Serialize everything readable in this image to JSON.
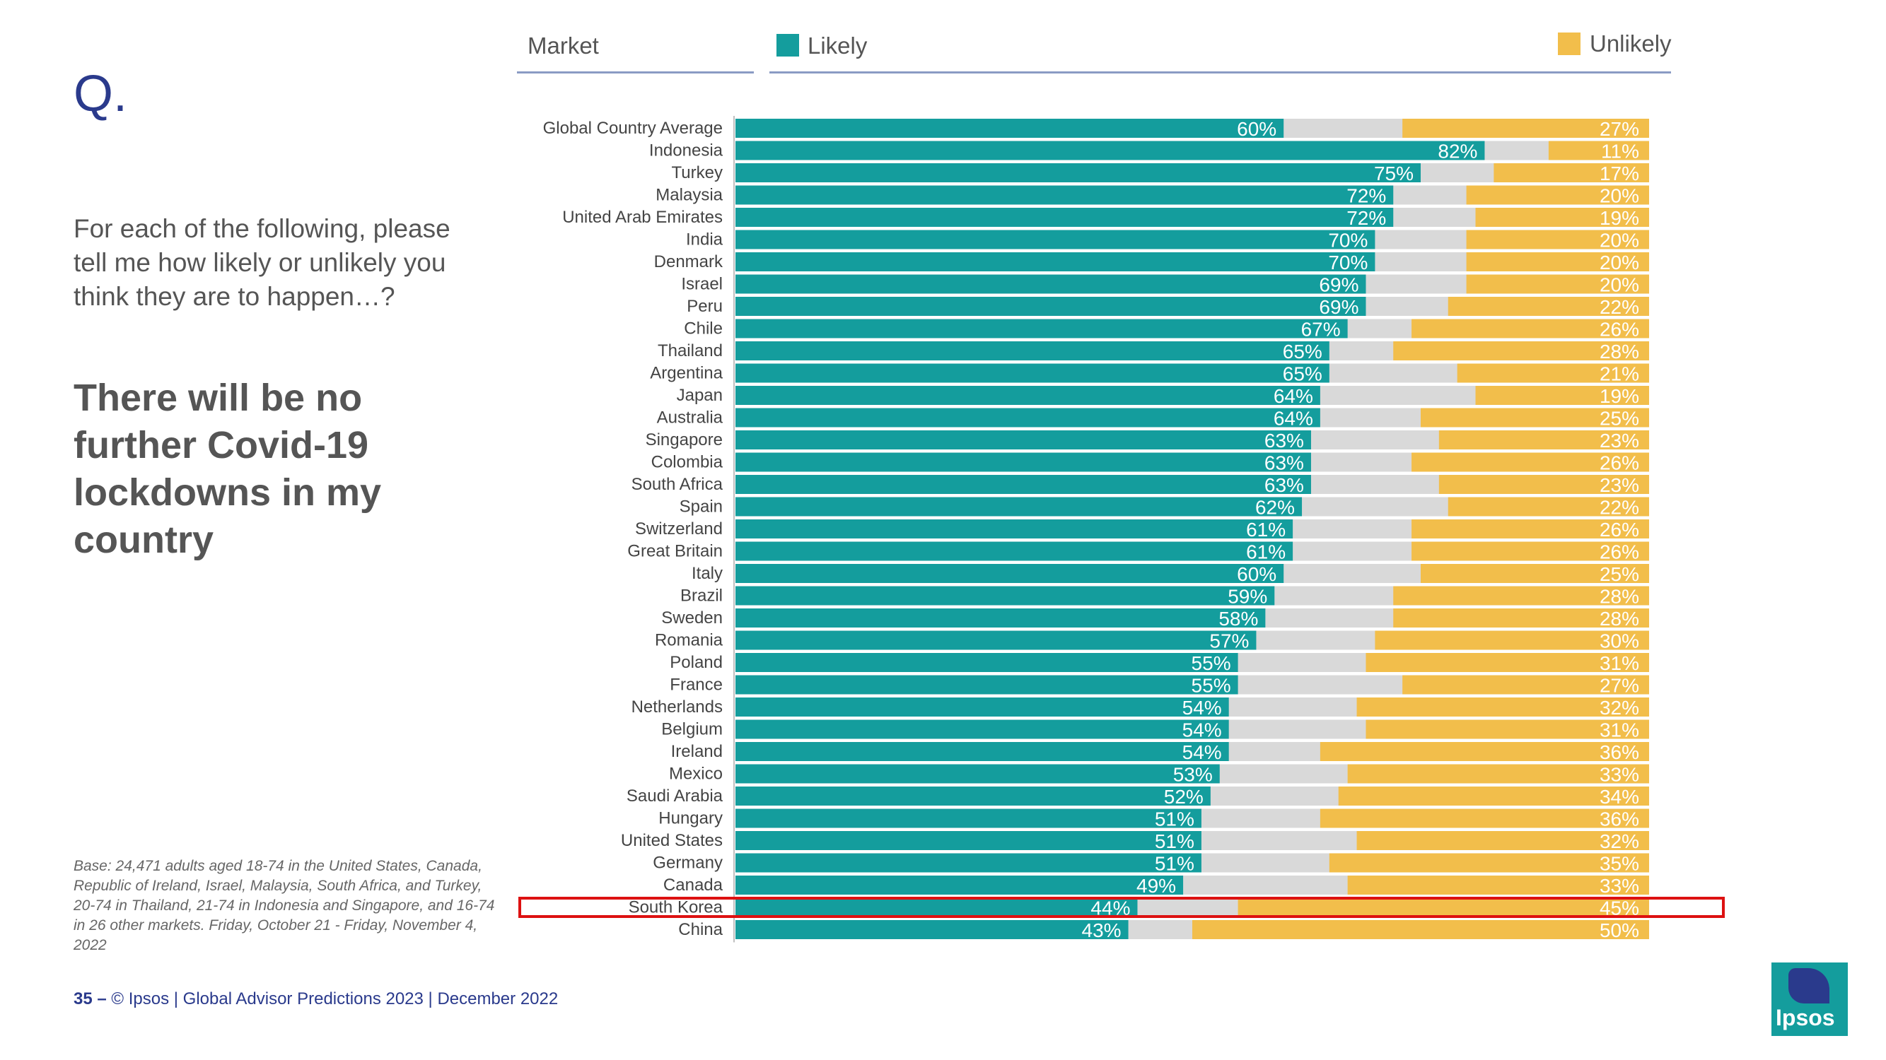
{
  "slide": {
    "q_mark": "Q.",
    "question": "For each of the following, please tell me how likely or unlikely you think they are to happen…?",
    "statement": "There will be no further Covid-19 lockdowns in my country",
    "base_note": "Base: 24,471 adults aged 18-74 in the United States, Canada, Republic of Ireland, Israel, Malaysia, South Africa, and Turkey, 20-74 in Thailand, 21-74 in Indonesia and Singapore, and 16-74 in 26 other markets. Friday, October 21 - Friday, November 4, 2022",
    "footer_page": "35 –",
    "footer_text": "© Ipsos | Global Advisor Predictions 2023 | December 2022",
    "logo_text": "Ipsos"
  },
  "colors": {
    "likely": "#149d9d",
    "unlikely": "#f2be4b",
    "neutral": "#d9d9d9",
    "brand": "#2a3a8c",
    "highlight": "#dd1111"
  },
  "chart_data": {
    "type": "bar",
    "orientation": "horizontal",
    "stacked": true,
    "header_market": "Market",
    "series_names": [
      "Likely",
      "Unlikely"
    ],
    "categories": [
      "Global Country Average",
      "Indonesia",
      "Turkey",
      "Malaysia",
      "United Arab Emirates",
      "India",
      "Denmark",
      "Israel",
      "Peru",
      "Chile",
      "Thailand",
      "Argentina",
      "Japan",
      "Australia",
      "Singapore",
      "Colombia",
      "South Africa",
      "Spain",
      "Switzerland",
      "Great Britain",
      "Italy",
      "Brazil",
      "Sweden",
      "Romania",
      "Poland",
      "France",
      "Netherlands",
      "Belgium",
      "Ireland",
      "Mexico",
      "Saudi Arabia",
      "Hungary",
      "United States",
      "Germany",
      "Canada",
      "South Korea",
      "China"
    ],
    "series": [
      {
        "name": "Likely",
        "values": [
          60,
          82,
          75,
          72,
          72,
          70,
          70,
          69,
          69,
          67,
          65,
          65,
          64,
          64,
          63,
          63,
          63,
          62,
          61,
          61,
          60,
          59,
          58,
          57,
          55,
          55,
          54,
          54,
          54,
          53,
          52,
          51,
          51,
          51,
          49,
          44,
          43
        ]
      },
      {
        "name": "Unlikely",
        "values": [
          27,
          11,
          17,
          20,
          19,
          20,
          20,
          20,
          22,
          26,
          28,
          21,
          19,
          25,
          23,
          26,
          23,
          22,
          26,
          26,
          25,
          28,
          28,
          30,
          31,
          27,
          32,
          31,
          36,
          33,
          34,
          36,
          32,
          35,
          33,
          45,
          50
        ]
      }
    ],
    "highlighted_category": "South Korea",
    "xlim": [
      0,
      100
    ],
    "value_suffix": "%"
  }
}
